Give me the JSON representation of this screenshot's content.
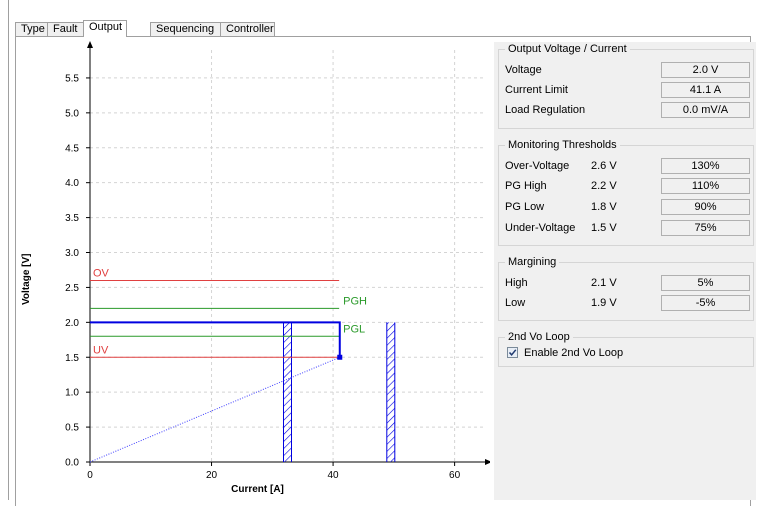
{
  "tabs": [
    {
      "label": "Type"
    },
    {
      "label": "Fault"
    },
    {
      "label": "Output",
      "active": true
    },
    {
      "label": "Sequencing"
    },
    {
      "label": "Controller"
    }
  ],
  "output_group": {
    "title": "Output Voltage / Current",
    "voltage_label": "Voltage",
    "voltage_value": "2.0 V",
    "current_limit_label": "Current Limit",
    "current_limit_value": "41.1 A",
    "load_regulation_label": "Load Regulation",
    "load_regulation_value": "0.0 mV/A"
  },
  "monitoring_group": {
    "title": "Monitoring Thresholds",
    "rows": [
      {
        "label": "Over-Voltage",
        "volts": "2.6 V",
        "percent": "130%"
      },
      {
        "label": "PG High",
        "volts": "2.2 V",
        "percent": "110%"
      },
      {
        "label": "PG Low",
        "volts": "1.8 V",
        "percent": "90%"
      },
      {
        "label": "Under-Voltage",
        "volts": "1.5 V",
        "percent": "75%"
      }
    ]
  },
  "margining_group": {
    "title": "Margining",
    "rows": [
      {
        "label": "High",
        "volts": "2.1 V",
        "percent": "5%"
      },
      {
        "label": "Low",
        "volts": "1.9 V",
        "percent": "-5%"
      }
    ]
  },
  "loop_group": {
    "title": "2nd Vo Loop",
    "enable_label": "Enable 2nd Vo Loop",
    "enabled": true
  },
  "chart_data": {
    "type": "line",
    "xlabel": "Current [A]",
    "ylabel": "Voltage [V]",
    "xlim": [
      0,
      65
    ],
    "ylim": [
      0,
      5.9
    ],
    "xticks": [
      0,
      20,
      40,
      60
    ],
    "yticks": [
      0.0,
      0.5,
      1.0,
      1.5,
      2.0,
      2.5,
      3.0,
      3.5,
      4.0,
      4.5,
      5.0,
      5.5
    ],
    "ytick_labels": [
      "0.0",
      "0.5",
      "1.0",
      "1.5",
      "2.0",
      "2.5",
      "3.0",
      "3.5",
      "4.0",
      "4.5",
      "5.0",
      "5.5"
    ],
    "grid": true,
    "colors": {
      "ov": "#e04040",
      "uv": "#e04040",
      "pg": "#2a9a2a",
      "vout": "#0000e0",
      "load": "#4040ff"
    },
    "threshold_lines": [
      {
        "label": "OV",
        "y": 2.6,
        "x_end": 41,
        "kind": "ov",
        "label_side": "left"
      },
      {
        "label": "PGH",
        "y": 2.2,
        "x_end": 41,
        "kind": "pg",
        "label_side": "right"
      },
      {
        "label": "PGL",
        "y": 1.8,
        "x_end": 41,
        "kind": "pg",
        "label_side": "right"
      },
      {
        "label": "UV",
        "y": 1.5,
        "x_end": 41,
        "kind": "uv",
        "label_side": "left"
      }
    ],
    "vout_curve": {
      "points": [
        [
          0,
          2.0
        ],
        [
          41.1,
          2.0
        ],
        [
          41.1,
          1.5
        ]
      ]
    },
    "load_line": {
      "points": [
        [
          0,
          0
        ],
        [
          41.1,
          1.5
        ]
      ]
    },
    "limit_bars": [
      {
        "x": 32.5,
        "y_max": 2.0
      },
      {
        "x": 49.5,
        "y_max": 2.0
      }
    ]
  }
}
